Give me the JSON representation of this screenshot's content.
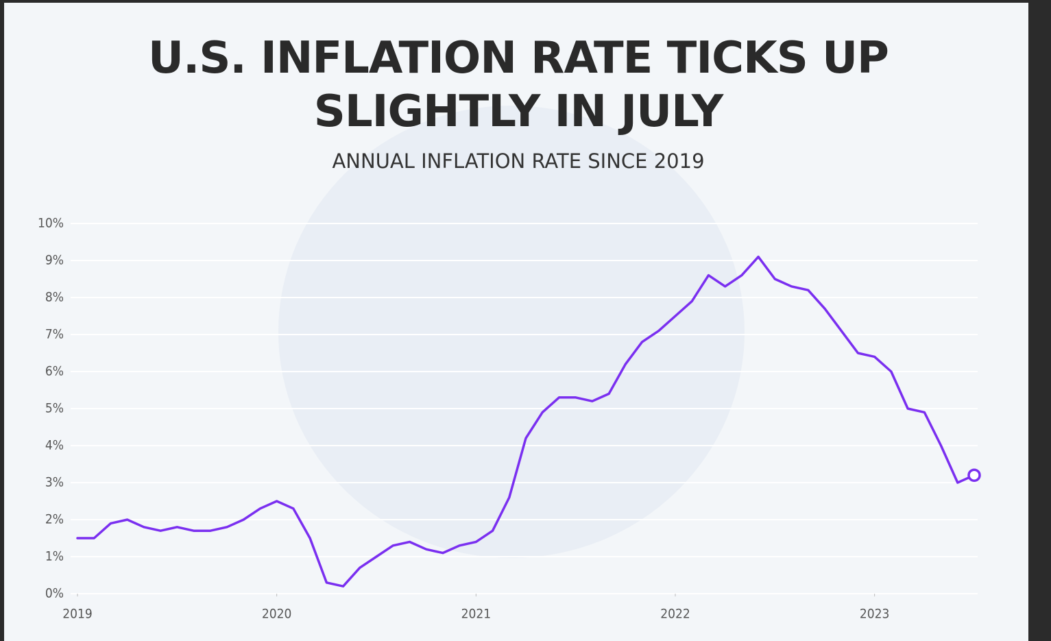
{
  "chart_data": {
    "type": "line",
    "title": "U.S. INFLATION RATE TICKS UP SLIGHTLY IN JULY",
    "subtitle": "ANNUAL INFLATION RATE SINCE 2019",
    "x": [
      2019,
      2019.0833,
      2019.1667,
      2019.25,
      2019.3333,
      2019.4167,
      2019.5,
      2019.5833,
      2019.6667,
      2019.75,
      2019.8333,
      2019.9167,
      2020,
      2020.0833,
      2020.1667,
      2020.25,
      2020.3333,
      2020.4167,
      2020.5,
      2020.5833,
      2020.6667,
      2020.75,
      2020.8333,
      2020.9167,
      2021,
      2021.0833,
      2021.1667,
      2021.25,
      2021.3333,
      2021.4167,
      2021.5,
      2021.5833,
      2021.6667,
      2021.75,
      2021.8333,
      2021.9167,
      2022,
      2022.0833,
      2022.1667,
      2022.25,
      2022.3333,
      2022.4167,
      2022.5,
      2022.5833,
      2022.6667,
      2022.75,
      2022.8333,
      2022.9167,
      2023,
      2023.0833,
      2023.1667,
      2023.25,
      2023.3333,
      2023.4167,
      2023.5
    ],
    "series": [
      {
        "name": "Annual inflation rate",
        "color": "#7a2ff0",
        "values": [
          1.5,
          1.5,
          1.9,
          2.0,
          1.8,
          1.7,
          1.8,
          1.7,
          1.7,
          1.8,
          2.0,
          2.3,
          2.5,
          2.3,
          1.5,
          0.3,
          0.2,
          0.7,
          1.0,
          1.3,
          1.4,
          1.2,
          1.1,
          1.3,
          1.4,
          1.7,
          2.6,
          4.2,
          4.9,
          5.3,
          5.3,
          5.2,
          5.4,
          6.2,
          6.8,
          7.1,
          7.5,
          7.9,
          8.6,
          8.3,
          8.6,
          9.1,
          8.5,
          8.3,
          8.2,
          7.7,
          7.1,
          6.5,
          6.4,
          6.0,
          5.0,
          4.9,
          4.0,
          3.0,
          3.2
        ]
      }
    ],
    "xlim": [
      2019,
      2023.5
    ],
    "xticks": [
      2019,
      2020,
      2021,
      2022,
      2023
    ],
    "ylim": [
      0,
      10
    ],
    "yticks": [
      {
        "value": 0,
        "label": "0%"
      },
      {
        "value": 1,
        "label": "1%"
      },
      {
        "value": 2,
        "label": "2%"
      },
      {
        "value": 3,
        "label": "3%"
      },
      {
        "value": 4,
        "label": "4%"
      },
      {
        "value": 5,
        "label": "5%"
      },
      {
        "value": 6,
        "label": "6%"
      },
      {
        "value": 7,
        "label": "7%"
      },
      {
        "value": 8,
        "label": "8%"
      },
      {
        "value": 9,
        "label": "9%"
      },
      {
        "value": 10,
        "label": "10%"
      }
    ],
    "grid": true
  }
}
